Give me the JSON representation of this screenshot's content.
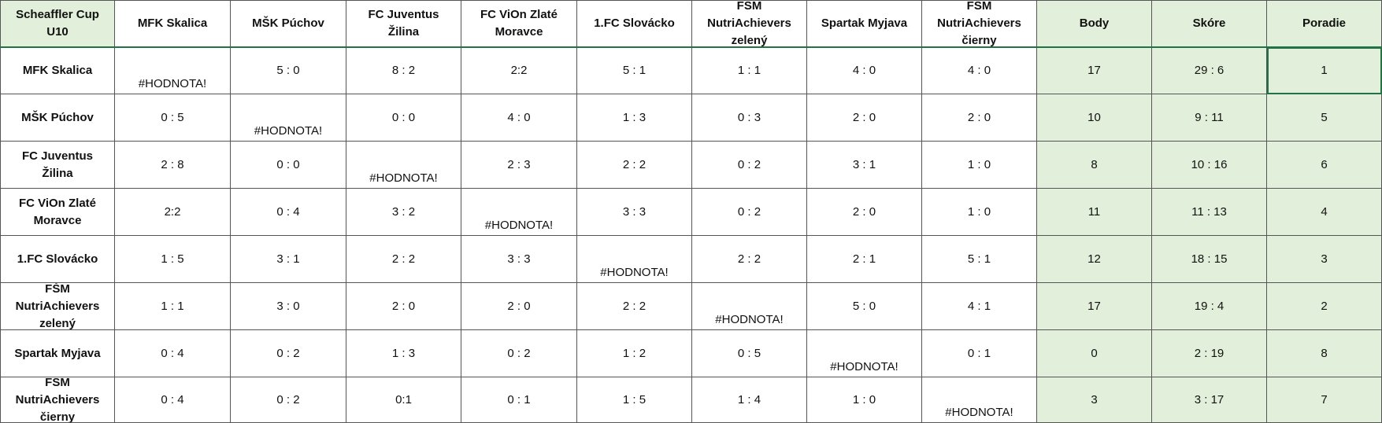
{
  "corner": "Scheaffler Cup U10",
  "columns": [
    "MFK Skalica",
    "MŠK Púchov",
    "FC Juventus Žilina",
    "FC ViOn Zlaté Moravce",
    "1.FC Slovácko",
    "FŠM NutriAchievers zelený",
    "Spartak Myjava",
    "FŠM NutriAchievers čierny",
    "Body",
    "Skóre",
    "Poradie"
  ],
  "rows": [
    {
      "team": "MFK Skalica",
      "results": [
        "#HODNOTA!",
        "5 : 0",
        "8 : 2",
        "2:2",
        "5 : 1",
        "1 : 1",
        "4 : 0",
        "4 : 0"
      ],
      "points": "17",
      "score": "29 : 6",
      "rank": "1"
    },
    {
      "team": "MŠK Púchov",
      "results": [
        "0 : 5",
        "#HODNOTA!",
        "0 : 0",
        "4 : 0",
        "1 : 3",
        "0 : 3",
        "2 : 0",
        "2 : 0"
      ],
      "points": "10",
      "score": "9 : 11",
      "rank": "5"
    },
    {
      "team": "FC Juventus Žilina",
      "results": [
        "2 : 8",
        "0 : 0",
        "#HODNOTA!",
        "2 : 3",
        "2 : 2",
        "0 : 2",
        "3 : 1",
        "1 : 0"
      ],
      "points": "8",
      "score": "10 : 16",
      "rank": "6"
    },
    {
      "team": "FC ViOn Zlaté Moravce",
      "results": [
        "2:2",
        "0 : 4",
        "3 : 2",
        "#HODNOTA!",
        "3 : 3",
        "0 : 2",
        "2 : 0",
        "1 : 0"
      ],
      "points": "11",
      "score": "11 : 13",
      "rank": "4"
    },
    {
      "team": "1.FC Slovácko",
      "results": [
        "1 : 5",
        "3 : 1",
        "2 : 2",
        "3 : 3",
        "#HODNOTA!",
        "2 : 2",
        "2 : 1",
        "5 : 1"
      ],
      "points": "12",
      "score": "18 : 15",
      "rank": "3"
    },
    {
      "team": "FŠM NutriAchievers zelený",
      "results": [
        "1 : 1",
        "3 : 0",
        "2 : 0",
        "2 : 0",
        "2 : 2",
        "#HODNOTA!",
        "5 : 0",
        "4 : 1"
      ],
      "points": "17",
      "score": "19 : 4",
      "rank": "2"
    },
    {
      "team": "Spartak Myjava",
      "results": [
        "0 : 4",
        "0 : 2",
        "1 : 3",
        "0 : 2",
        "1 : 2",
        "0 : 5",
        "#HODNOTA!",
        "0 : 1"
      ],
      "points": "0",
      "score": "2 : 19",
      "rank": "8"
    },
    {
      "team": "FŠM NutriAchievers čierny",
      "results": [
        "0 : 4",
        "0 : 2",
        "0:1",
        "0 : 1",
        "1 : 5",
        "1 : 4",
        "1 : 0",
        "#HODNOTA!"
      ],
      "points": "3",
      "score": "3 : 17",
      "rank": "7"
    }
  ],
  "colors": {
    "green_fill": "#e2efda",
    "selection": "#217346",
    "grid": "#555555"
  }
}
